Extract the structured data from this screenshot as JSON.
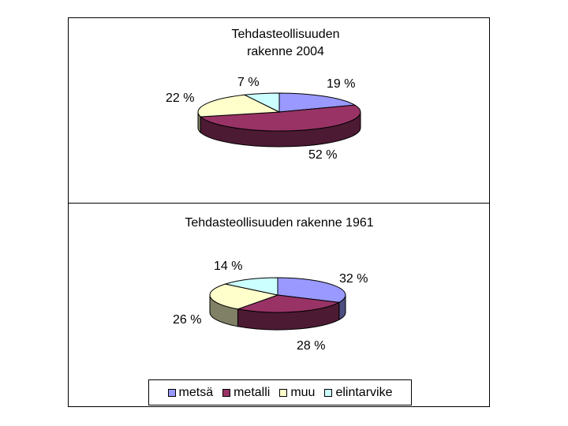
{
  "colors": {
    "metsa": "#9999ff",
    "metalli": "#993366",
    "muu": "#ffffcc",
    "elintarvike": "#ccffff"
  },
  "legend": [
    {
      "label": "metsä",
      "color": "#9999ff"
    },
    {
      "label": "metalli",
      "color": "#993366"
    },
    {
      "label": "muu",
      "color": "#ffffcc"
    },
    {
      "label": "elintarvike",
      "color": "#ccffff"
    }
  ],
  "chart_data": [
    {
      "type": "pie",
      "title_lines": [
        "Tehdasteollisuuden",
        "rakenne 2004"
      ],
      "categories": [
        "metsä",
        "metalli",
        "muu",
        "elintarvike"
      ],
      "values": [
        19,
        52,
        22,
        7
      ],
      "labels": [
        "19 %",
        "52 %",
        "22 %",
        "7 %"
      ],
      "legend": "bottom"
    },
    {
      "type": "pie",
      "title_lines": [
        "Tehdasteollisuuden rakenne 1961"
      ],
      "categories": [
        "metsä",
        "metalli",
        "muu",
        "elintarvike"
      ],
      "values": [
        32,
        28,
        26,
        14
      ],
      "labels": [
        "32 %",
        "28 %",
        "26 %",
        "14 %"
      ],
      "legend": "bottom"
    }
  ]
}
